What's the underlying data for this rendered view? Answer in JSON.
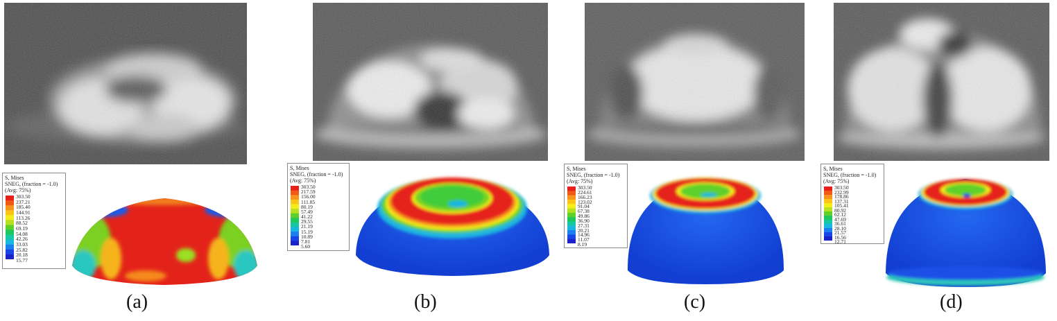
{
  "panels": [
    {
      "label": "(a)",
      "legend": {
        "title": "S, Mises",
        "subtitle": "SNEG, (fraction = -1.0)",
        "avg": "(Avg: 75%)",
        "values": [
          "303.50",
          "237.21",
          "185.40",
          "144.91",
          "113.26",
          "88.52",
          "69.19",
          "54.08",
          "42.26",
          "33.03",
          "25.82",
          "20.18",
          "15.77"
        ]
      }
    },
    {
      "label": "(b)",
      "legend": {
        "title": "S, Mises",
        "subtitle": "SNEG, (fraction = -1.0)",
        "avg": "(Avg: 75%)",
        "values": [
          "303.50",
          "217.59",
          "156.00",
          "111.85",
          "80.19",
          "57.49",
          "41.22",
          "29.55",
          "21.19",
          "15.19",
          "10.89",
          "7.81",
          "5.60"
        ]
      }
    },
    {
      "label": "(c)",
      "legend": {
        "title": "S, Mises",
        "subtitle": "SNEG, (fraction = -1.0)",
        "avg": "(Avg: 75%)",
        "values": [
          "303.50",
          "224.61",
          "166.23",
          "123.02",
          "91.04",
          "67.38",
          "49.86",
          "36.90",
          "27.31",
          "20.21",
          "14.96",
          "11.07",
          "8.19"
        ]
      }
    },
    {
      "label": "(d)",
      "legend": {
        "title": "S, Mises",
        "subtitle": "SNEG, (fraction = -1.0)",
        "avg": "(Avg: 75%)",
        "values": [
          "303.50",
          "232.99",
          "178.86",
          "137.31",
          "105.41",
          "80.92",
          "62.12",
          "47.69",
          "36.61",
          "28.10",
          "21.57",
          "16.56",
          "12.71"
        ]
      }
    }
  ],
  "colors": {
    "legend_scale": [
      "#e8201c",
      "#f05a16",
      "#f7941d",
      "#fcc419",
      "#f5ec1b",
      "#b7e01e",
      "#5fd02a",
      "#1ec85c",
      "#16c7a4",
      "#19b6e0",
      "#1b7ff0",
      "#1a45e6",
      "#1a23c8"
    ]
  }
}
